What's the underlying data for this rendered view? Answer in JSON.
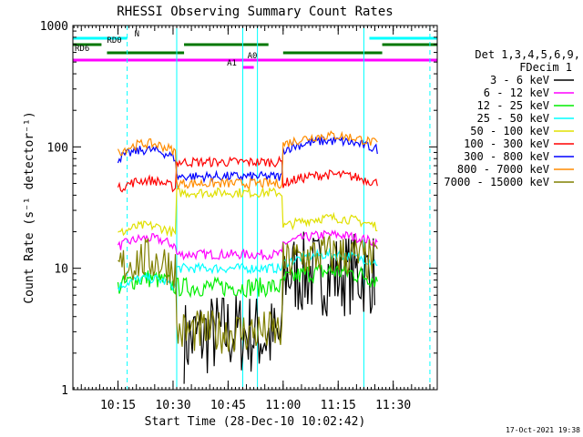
{
  "chart_data": {
    "type": "line",
    "title": "RHESSI Observing Summary Count Rates",
    "xlabel": "Start Time (28-Dec-10 10:02:42)",
    "ylabel": "Count Rate (s⁻¹ detector⁻¹)",
    "yscale": "log",
    "ylim": [
      1,
      1000
    ],
    "xlim": [
      "10:02:42",
      "11:42:00"
    ],
    "x_ticks": [
      "10:15",
      "10:30",
      "10:45",
      "11:00",
      "11:15",
      "11:30"
    ],
    "y_ticks": [
      "1",
      "10",
      "100",
      "1000"
    ],
    "grid": false,
    "legend_position": "right",
    "legend_header": [
      "Det 1,3,4,5,6,9,",
      "FDecim 1"
    ],
    "series": [
      {
        "name": "3 - 6 keV",
        "color": "#000000",
        "segments": [
          {
            "start": "10:33",
            "end": "11:00",
            "level": 2.5
          },
          {
            "start": "11:00",
            "end": "11:25",
            "level": 9
          }
        ]
      },
      {
        "name": "6 - 12 keV",
        "color": "#ff00ff",
        "segments": [
          {
            "start": "10:15",
            "end": "10:31",
            "level": 15
          },
          {
            "start": "10:31",
            "end": "11:00",
            "level": 13
          },
          {
            "start": "11:00",
            "end": "11:26",
            "level": 16
          }
        ]
      },
      {
        "name": "12 - 25 keV",
        "color": "#00ee00",
        "segments": [
          {
            "start": "10:15",
            "end": "10:31",
            "level": 7
          },
          {
            "start": "10:31",
            "end": "11:00",
            "level": 7
          },
          {
            "start": "11:00",
            "end": "11:26",
            "level": 8
          }
        ]
      },
      {
        "name": "25 - 50 keV",
        "color": "#00ffff",
        "segments": [
          {
            "start": "10:15",
            "end": "10:31",
            "level": 7
          },
          {
            "start": "10:31",
            "end": "11:00",
            "level": 10
          },
          {
            "start": "11:00",
            "end": "11:26",
            "level": 11
          }
        ]
      },
      {
        "name": "50 - 100 keV",
        "color": "#e0e000",
        "segments": [
          {
            "start": "10:15",
            "end": "10:31",
            "level": 19
          },
          {
            "start": "10:31",
            "end": "11:00",
            "level": 42
          },
          {
            "start": "11:00",
            "end": "11:26",
            "level": 22
          }
        ]
      },
      {
        "name": "100 - 300 keV",
        "color": "#ff0000",
        "segments": [
          {
            "start": "10:15",
            "end": "10:31",
            "level": 45
          },
          {
            "start": "10:31",
            "end": "11:00",
            "level": 75
          },
          {
            "start": "11:00",
            "end": "11:26",
            "level": 50
          }
        ]
      },
      {
        "name": "300 - 800 keV",
        "color": "#0000ff",
        "segments": [
          {
            "start": "10:15",
            "end": "10:31",
            "level": 80
          },
          {
            "start": "10:31",
            "end": "11:00",
            "level": 57
          },
          {
            "start": "11:00",
            "end": "11:26",
            "level": 95
          }
        ]
      },
      {
        "name": "800 - 7000 keV",
        "color": "#ff8c00",
        "segments": [
          {
            "start": "10:15",
            "end": "10:31",
            "level": 90
          },
          {
            "start": "10:31",
            "end": "11:00",
            "level": 50
          },
          {
            "start": "11:00",
            "end": "11:26",
            "level": 105
          }
        ]
      },
      {
        "name": "7000 - 15000 keV",
        "color": "#808000",
        "segments": [
          {
            "start": "10:15",
            "end": "10:31",
            "level": 10
          },
          {
            "start": "10:31",
            "end": "11:00",
            "level": 3
          },
          {
            "start": "11:00",
            "end": "11:26",
            "level": 11
          }
        ]
      }
    ],
    "annotations": {
      "flag_bars": [
        {
          "label": "N",
          "color": "#00ffff",
          "ranges": [
            [
              "10:02:42",
              "10:17:30"
            ],
            [
              "11:23:30",
              "11:42:00"
            ]
          ]
        },
        {
          "label": "RD0",
          "color": "#007700",
          "ranges": [
            [
              "10:02:42",
              "10:10:30"
            ],
            [
              "10:33",
              "10:56"
            ],
            [
              "11:27",
              "11:42:00"
            ]
          ]
        },
        {
          "label": "RD6",
          "color": "#007700",
          "ranges": [
            [
              "10:12",
              "10:33"
            ],
            [
              "11:00",
              "11:27"
            ]
          ]
        },
        {
          "label": "A0",
          "color": "#ff00ff",
          "ranges": [
            [
              "10:02:42",
              "11:42:00"
            ]
          ]
        },
        {
          "label": "A1",
          "color": "#ff00ff",
          "ranges": [
            [
              "10:49",
              "10:52"
            ]
          ]
        }
      ],
      "solid_vlines": {
        "color": "#00ffff",
        "times": [
          "10:02:42",
          "10:31",
          "10:49",
          "10:53",
          "11:22"
        ]
      },
      "dashed_vlines": {
        "color": "#00ffff",
        "times": [
          "10:17:30",
          "11:40"
        ]
      }
    },
    "footer_timestamp": "17-Oct-2021 19:38"
  }
}
